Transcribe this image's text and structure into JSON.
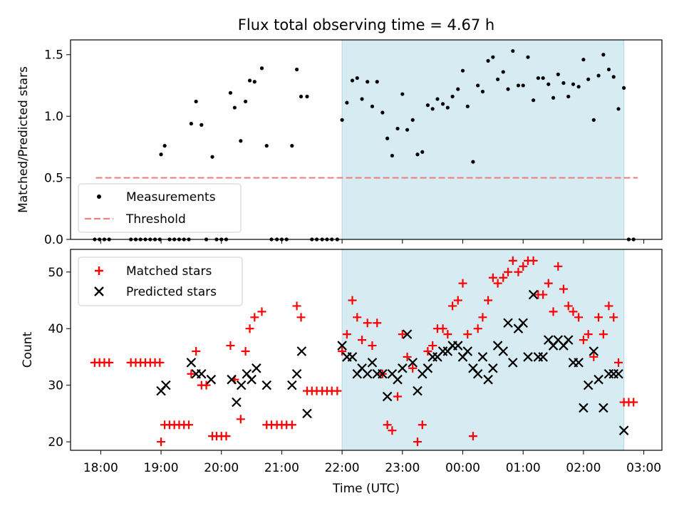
{
  "title": "Flux total observing time = 4.67 h",
  "colors": {
    "measurement": "#000000",
    "threshold": "#f08080",
    "span": "#add8e6",
    "matched": "#ff0000",
    "predicted": "#000000"
  },
  "chart_data": [
    {
      "type": "scatter",
      "ylabel": "Matched/Predicted stars",
      "ylim": [
        0,
        1.62
      ],
      "yticks": [
        0.0,
        0.5,
        1.0,
        1.5
      ],
      "ytick_labels": [
        "0.0",
        "0.5",
        "1.0",
        "1.5"
      ],
      "xlim": [
        17.5,
        27.3
      ],
      "observing_window": [
        22.0,
        26.67
      ],
      "legend": {
        "placement": "lower-left",
        "entries": [
          "Measurements",
          "Threshold"
        ]
      },
      "threshold": {
        "name": "Threshold",
        "value": 0.5,
        "x_range": [
          17.92,
          26.9
        ],
        "style": "dashed"
      },
      "series": [
        {
          "name": "Measurements",
          "x": [
            17.9,
            17.98,
            18.06,
            18.14,
            18.5,
            18.58,
            18.66,
            18.74,
            18.82,
            18.9,
            18.98,
            19.0,
            19.06,
            19.14,
            19.22,
            19.3,
            19.38,
            19.46,
            19.5,
            19.58,
            19.67,
            19.75,
            19.85,
            19.92,
            20.0,
            20.08,
            20.15,
            20.22,
            20.32,
            20.4,
            20.47,
            20.55,
            20.67,
            20.75,
            20.83,
            20.92,
            21.0,
            21.08,
            21.17,
            21.25,
            21.32,
            21.42,
            21.5,
            21.58,
            21.67,
            21.75,
            21.83,
            21.92,
            22.0,
            22.08,
            22.17,
            22.25,
            22.33,
            22.42,
            22.5,
            22.58,
            22.67,
            22.75,
            22.83,
            22.92,
            23.0,
            23.08,
            23.17,
            23.25,
            23.33,
            23.42,
            23.5,
            23.58,
            23.67,
            23.75,
            23.83,
            23.92,
            24.0,
            24.08,
            24.17,
            24.25,
            24.33,
            24.42,
            24.5,
            24.58,
            24.67,
            24.75,
            24.83,
            24.92,
            25.0,
            25.08,
            25.17,
            25.25,
            25.33,
            25.42,
            25.5,
            25.58,
            25.67,
            25.75,
            25.83,
            25.92,
            26.0,
            26.08,
            26.17,
            26.25,
            26.33,
            26.42,
            26.5,
            26.58,
            26.67,
            26.75,
            26.83
          ],
          "y": [
            0,
            0,
            0,
            0,
            0,
            0,
            0,
            0,
            0,
            0,
            0,
            0.69,
            0.76,
            0,
            0,
            0,
            0,
            0,
            0.94,
            1.12,
            0.93,
            0,
            0.67,
            0,
            0,
            0,
            1.19,
            1.07,
            0.8,
            1.12,
            1.29,
            1.28,
            1.39,
            0.76,
            0,
            0,
            0,
            0,
            0.76,
            1.38,
            1.16,
            1.16,
            0,
            0,
            0,
            0,
            0,
            0,
            0.97,
            1.11,
            1.29,
            1.31,
            1.14,
            1.28,
            1.08,
            1.28,
            1.03,
            0.82,
            0.68,
            0.9,
            1.18,
            0.89,
            0.97,
            0.69,
            0.71,
            1.09,
            1.06,
            1.14,
            1.1,
            1.07,
            1.16,
            1.22,
            1.37,
            1.08,
            0.63,
            1.25,
            1.2,
            1.45,
            1.48,
            1.3,
            1.36,
            1.22,
            1.53,
            1.25,
            1.25,
            1.48,
            1.13,
            1.31,
            1.31,
            1.26,
            1.15,
            1.34,
            1.27,
            1.16,
            1.26,
            1.24,
            1.46,
            1.3,
            0.97,
            1.33,
            1.5,
            1.38,
            1.32,
            1.06,
            1.23,
            0,
            0
          ]
        }
      ]
    },
    {
      "type": "scatter",
      "xlabel": "Time (UTC)",
      "ylabel": "Count",
      "ylim": [
        18.5,
        54
      ],
      "yticks": [
        20,
        30,
        40,
        50
      ],
      "ytick_labels": [
        "20",
        "30",
        "40",
        "50"
      ],
      "xlim": [
        17.5,
        27.3
      ],
      "xticks": [
        18,
        19,
        20,
        21,
        22,
        23,
        24,
        25,
        26,
        27
      ],
      "xtick_labels": [
        "18:00",
        "19:00",
        "20:00",
        "21:00",
        "22:00",
        "23:00",
        "00:00",
        "01:00",
        "02:00",
        "03:00"
      ],
      "observing_window": [
        22.0,
        26.67
      ],
      "legend": {
        "placement": "top-left",
        "entries": [
          "Matched stars",
          "Predicted stars"
        ]
      },
      "series": [
        {
          "name": "Matched stars",
          "marker": "+",
          "x": [
            17.9,
            17.98,
            18.06,
            18.14,
            18.5,
            18.58,
            18.66,
            18.74,
            18.82,
            18.9,
            18.98,
            19.0,
            19.06,
            19.14,
            19.22,
            19.3,
            19.38,
            19.46,
            19.5,
            19.58,
            19.67,
            19.75,
            19.85,
            19.92,
            20.0,
            20.08,
            20.15,
            20.22,
            20.32,
            20.4,
            20.47,
            20.55,
            20.67,
            20.75,
            20.83,
            20.92,
            21.0,
            21.08,
            21.17,
            21.25,
            21.32,
            21.42,
            21.5,
            21.58,
            21.67,
            21.75,
            21.83,
            21.92,
            22.0,
            22.08,
            22.17,
            22.25,
            22.33,
            22.42,
            22.5,
            22.58,
            22.67,
            22.75,
            22.83,
            22.92,
            23.0,
            23.08,
            23.17,
            23.25,
            23.33,
            23.42,
            23.5,
            23.58,
            23.67,
            23.75,
            23.83,
            23.92,
            24.0,
            24.08,
            24.17,
            24.25,
            24.33,
            24.42,
            24.5,
            24.58,
            24.67,
            24.75,
            24.83,
            24.92,
            25.0,
            25.08,
            25.17,
            25.25,
            25.33,
            25.42,
            25.5,
            25.58,
            25.67,
            25.75,
            25.83,
            25.92,
            26.0,
            26.08,
            26.17,
            26.25,
            26.33,
            26.42,
            26.5,
            26.58,
            26.67,
            26.75,
            26.83
          ],
          "y": [
            34,
            34,
            34,
            34,
            34,
            34,
            34,
            34,
            34,
            34,
            34,
            20,
            23,
            23,
            23,
            23,
            23,
            23,
            32,
            36,
            30,
            30,
            21,
            21,
            21,
            21,
            37,
            31,
            24,
            36,
            40,
            42,
            43,
            23,
            23,
            23,
            23,
            23,
            23,
            44,
            42,
            29,
            29,
            29,
            29,
            29,
            29,
            29,
            36,
            39,
            45,
            42,
            38,
            41,
            37,
            41,
            32,
            23,
            22,
            28,
            39,
            35,
            33,
            20,
            23,
            36,
            37,
            40,
            40,
            39,
            44,
            45,
            48,
            39,
            21,
            40,
            42,
            45,
            49,
            48,
            49,
            50,
            52,
            50,
            51,
            52,
            52,
            46,
            46,
            48,
            43,
            51,
            47,
            44,
            43,
            42,
            38,
            39,
            35,
            42,
            39,
            44,
            42,
            34,
            27,
            27,
            27
          ]
        },
        {
          "name": "Predicted stars",
          "marker": "x",
          "x": [
            19.0,
            19.08,
            19.5,
            19.58,
            19.67,
            19.83,
            20.17,
            20.25,
            20.33,
            20.42,
            20.5,
            20.58,
            20.75,
            21.17,
            21.25,
            21.33,
            21.42,
            22.0,
            22.08,
            22.17,
            22.25,
            22.33,
            22.42,
            22.5,
            22.58,
            22.67,
            22.75,
            22.83,
            22.92,
            23.0,
            23.08,
            23.17,
            23.25,
            23.33,
            23.42,
            23.5,
            23.58,
            23.67,
            23.75,
            23.83,
            23.92,
            24.0,
            24.08,
            24.17,
            24.25,
            24.33,
            24.42,
            24.5,
            24.58,
            24.67,
            24.75,
            24.83,
            24.92,
            25.0,
            25.08,
            25.17,
            25.25,
            25.33,
            25.42,
            25.5,
            25.58,
            25.67,
            25.75,
            25.83,
            25.92,
            26.0,
            26.08,
            26.17,
            26.25,
            26.33,
            26.42,
            26.5,
            26.58,
            26.67
          ],
          "y": [
            29,
            30,
            34,
            32,
            32,
            31,
            31,
            27,
            30,
            32,
            31,
            33,
            30,
            30,
            32,
            36,
            25,
            37,
            35,
            35,
            32,
            33,
            32,
            34,
            32,
            32,
            28,
            32,
            31,
            33,
            39,
            34,
            29,
            32,
            33,
            35,
            35,
            36,
            36,
            37,
            37,
            35,
            36,
            33,
            32,
            35,
            31,
            33,
            37,
            36,
            41,
            34,
            40,
            41,
            35,
            46,
            35,
            35,
            38,
            37,
            38,
            37,
            38,
            34,
            34,
            26,
            30,
            36,
            31,
            26,
            32,
            32,
            32,
            22
          ]
        }
      ]
    }
  ]
}
